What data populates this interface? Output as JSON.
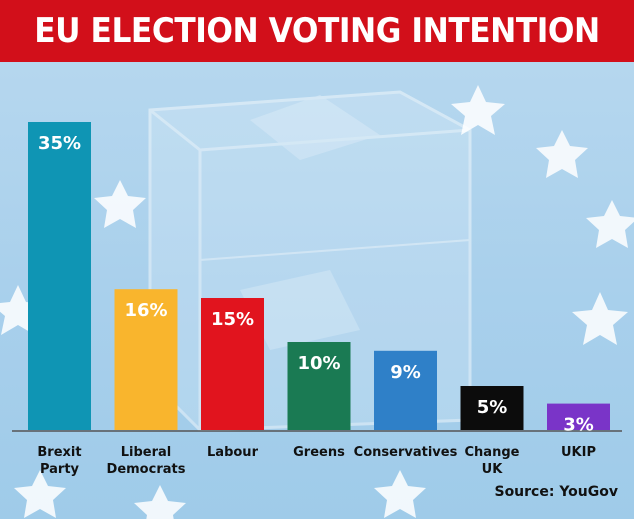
{
  "header": {
    "title": "EU ELECTION VOTING INTENTION"
  },
  "source": "Source: YouGov",
  "chart_data": {
    "type": "bar",
    "title": "EU ELECTION VOTING INTENTION",
    "categories": [
      [
        "Brexit",
        "Party"
      ],
      [
        "Liberal",
        "Democrats"
      ],
      [
        "Labour"
      ],
      [
        "Greens"
      ],
      [
        "Conservatives"
      ],
      [
        "Change",
        "UK"
      ],
      [
        "UKIP"
      ]
    ],
    "values": [
      35,
      16,
      15,
      10,
      9,
      5,
      3
    ],
    "value_labels": [
      "35%",
      "16%",
      "15%",
      "10%",
      "9%",
      "5%",
      "3%"
    ],
    "colors": [
      "#0f95b4",
      "#f9b52d",
      "#e1141e",
      "#1a7a53",
      "#2f80c8",
      "#0c0c0c",
      "#7a34c8"
    ],
    "label_colors": [
      "#ffffff",
      "#ffffff",
      "#ffffff",
      "#ffffff",
      "#ffffff",
      "#ffffff",
      "#ffffff"
    ],
    "ylim": [
      0,
      35
    ],
    "grid": false,
    "legend": "none"
  }
}
